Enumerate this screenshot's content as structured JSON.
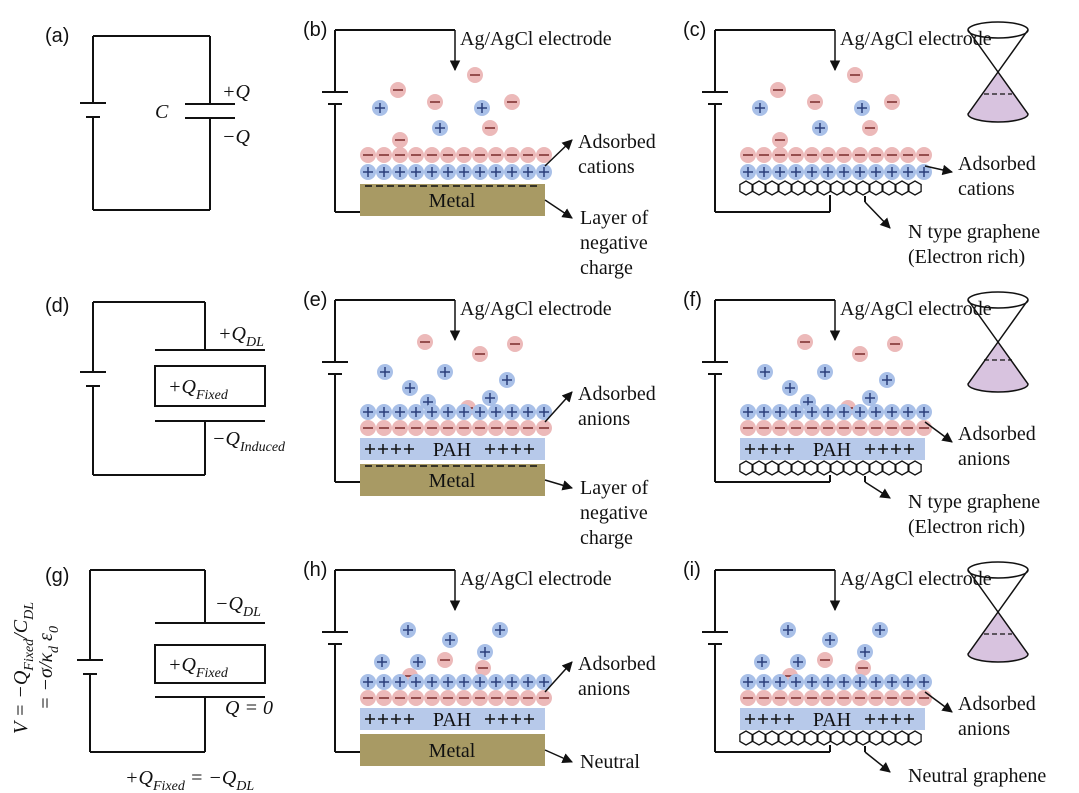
{
  "panels": [
    {
      "label": "(a)",
      "charge_top": "+Q",
      "capacitance": "C",
      "charge_bottom": "−Q"
    },
    {
      "label": "(b)",
      "electrode": "Ag/AgCl electrode",
      "adsorbed": [
        "Adsorbed",
        "cations"
      ],
      "substrate": "Metal",
      "substrate_note": [
        "Layer of",
        "negative",
        "charge"
      ]
    },
    {
      "label": "(c)",
      "electrode": "Ag/AgCl electrode",
      "adsorbed": [
        "Adsorbed",
        "cations"
      ],
      "substrate_note": [
        "N type graphene",
        "(Electron rich)"
      ]
    },
    {
      "label": "(d)",
      "charge_top": [
        "+Q",
        "DL"
      ],
      "fixed": [
        "+Q",
        "Fixed"
      ],
      "charge_bottom": [
        "−Q",
        "Induced"
      ]
    },
    {
      "label": "(e)",
      "electrode": "Ag/AgCl electrode",
      "adsorbed": [
        "Adsorbed",
        "anions"
      ],
      "layer": "PAH",
      "substrate": "Metal",
      "substrate_note": [
        "Layer of",
        "negative",
        "charge"
      ]
    },
    {
      "label": "(f)",
      "electrode": "Ag/AgCl electrode",
      "adsorbed": [
        "Adsorbed",
        "anions"
      ],
      "layer": "PAH",
      "substrate_note": [
        "N type graphene",
        "(Electron rich)"
      ]
    },
    {
      "label": "(g)",
      "charge_top": [
        "−Q",
        "DL"
      ],
      "fixed": [
        "+Q",
        "Fixed"
      ],
      "charge_bottom": "Q = 0",
      "balance": [
        "+Q",
        "Fixed",
        " = −Q",
        "DL"
      ],
      "voltage": [
        [
          "V = −Q",
          "Fixed",
          "/C",
          "DL"
        ],
        [
          "= −σ/κ",
          "d",
          " ε",
          "0"
        ]
      ]
    },
    {
      "label": "(h)",
      "electrode": "Ag/AgCl electrode",
      "adsorbed": [
        "Adsorbed",
        "anions"
      ],
      "layer": "PAH",
      "substrate": "Metal",
      "substrate_note": [
        "Neutral"
      ]
    },
    {
      "label": "(i)",
      "electrode": "Ag/AgCl electrode",
      "adsorbed": [
        "Adsorbed",
        "anions"
      ],
      "layer": "PAH",
      "substrate_note": [
        "Neutral graphene"
      ]
    }
  ]
}
